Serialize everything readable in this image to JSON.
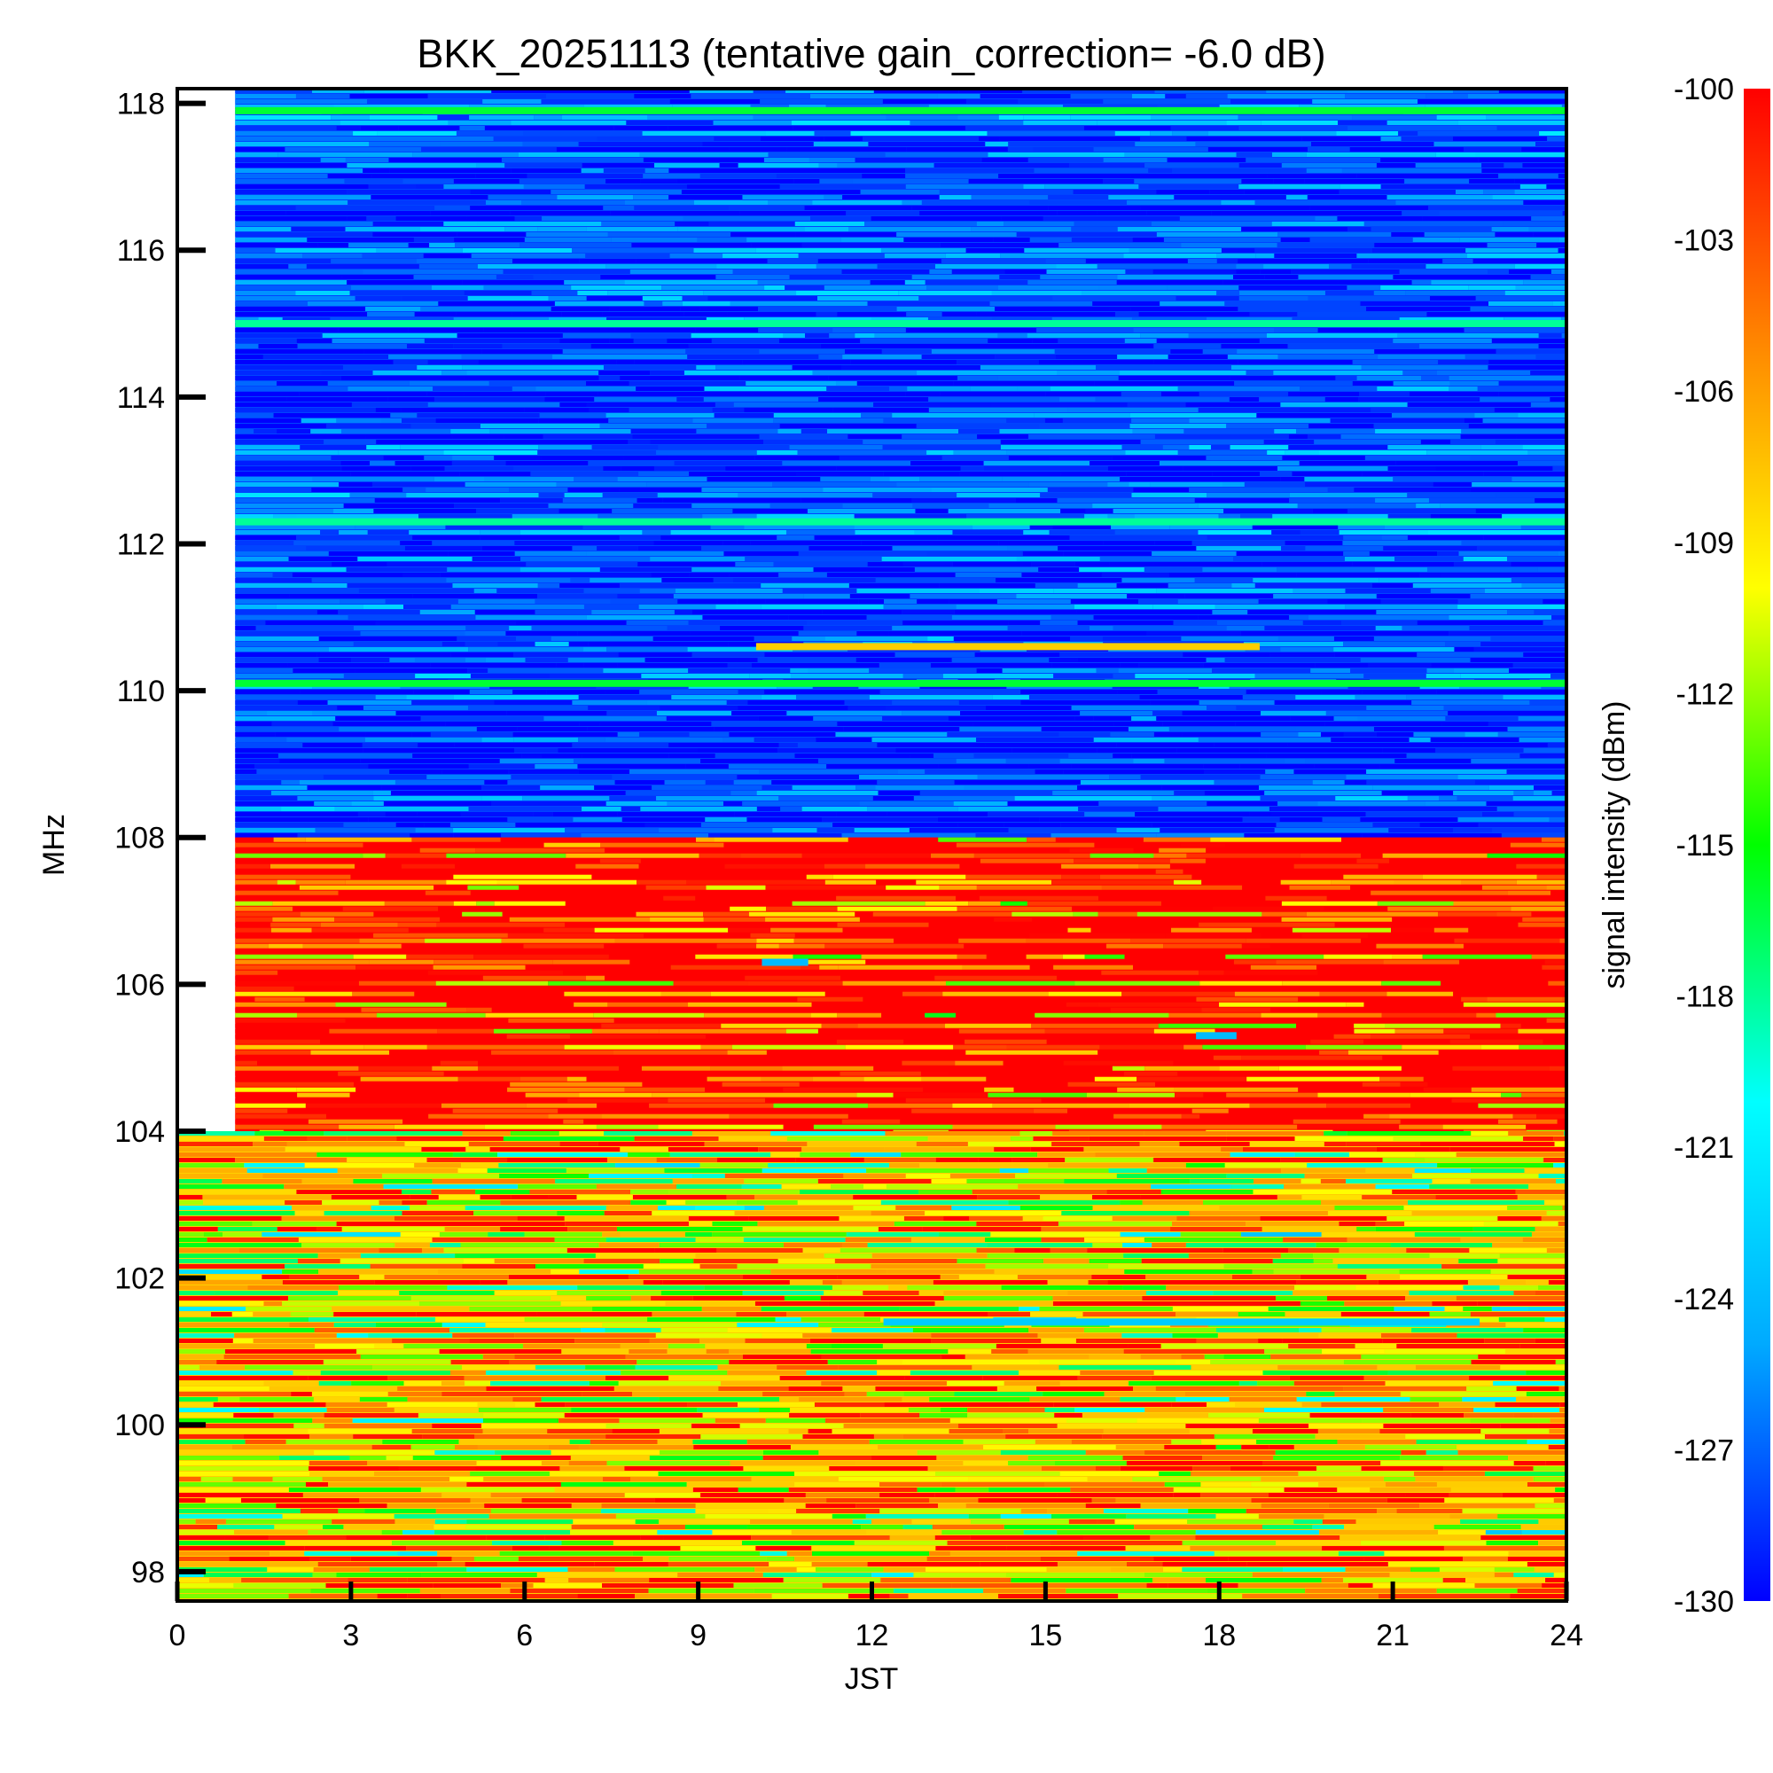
{
  "chart_data": {
    "type": "heatmap",
    "title": "BKK_20251113 (tentative gain_correction= -6.0 dB)",
    "xlabel": "JST",
    "ylabel": "MHz",
    "colorbar_label": "signal intensity (dBm)",
    "xlim": [
      0,
      24
    ],
    "ylim": [
      97.6,
      118.2
    ],
    "x_ticks": [
      0,
      3,
      6,
      9,
      12,
      15,
      18,
      21,
      24
    ],
    "x_tick_labels": [
      "0",
      "3",
      "6",
      "9",
      "12",
      "15",
      "18",
      "21",
      "24"
    ],
    "y_ticks": [
      98,
      100,
      102,
      104,
      106,
      108,
      110,
      112,
      114,
      116,
      118
    ],
    "y_tick_labels": [
      "98",
      "100",
      "102",
      "104",
      "106",
      "108",
      "110",
      "112",
      "114",
      "116",
      "118"
    ],
    "color_range": [
      -130,
      -100
    ],
    "colorbar_ticks": [
      -100,
      -103,
      -106,
      -109,
      -112,
      -115,
      -118,
      -121,
      -124,
      -127,
      -130
    ],
    "colorbar_tick_labels": [
      "-100",
      "-103",
      "-106",
      "-109",
      "-112",
      "-115",
      "-118",
      "-121",
      "-124",
      "-127",
      "-130"
    ],
    "colormap": [
      "#0000ff",
      "#00aaff",
      "#00ffff",
      "#00ff00",
      "#ffff00",
      "#ff8800",
      "#ff0000"
    ],
    "regions": [
      {
        "name": "no-data-upper",
        "x": [
          0,
          1
        ],
        "y": [
          104,
          118.2
        ],
        "value": null
      },
      {
        "name": "band-108-118",
        "x": [
          1,
          24
        ],
        "y": [
          108,
          118.2
        ],
        "typical_dBm": -128
      },
      {
        "name": "band-104-108",
        "x": [
          1,
          24
        ],
        "y": [
          104,
          108
        ],
        "typical_dBm": -100
      },
      {
        "name": "band-97.6-104",
        "x": [
          0,
          24
        ],
        "y": [
          97.6,
          104
        ],
        "typical_dBm": -108
      }
    ],
    "features": [
      {
        "name": "line-110.6",
        "freq": 110.6,
        "x": [
          10,
          18.7
        ],
        "dBm": -108
      },
      {
        "name": "line-110.1",
        "freq": 110.1,
        "x": [
          1,
          24
        ],
        "dBm": -116
      },
      {
        "name": "line-112.3",
        "freq": 112.3,
        "x": [
          1,
          24
        ],
        "dBm": -118
      },
      {
        "name": "line-115.0",
        "freq": 115.0,
        "x": [
          1,
          24
        ],
        "dBm": -118
      },
      {
        "name": "line-117.9",
        "freq": 117.9,
        "x": [
          1,
          24
        ],
        "dBm": -116
      },
      {
        "name": "cyan-patch-101.4",
        "freq": 101.4,
        "x": [
          12.2,
          22.5
        ],
        "dBm": -123
      },
      {
        "name": "cyan-patch-106.3",
        "freq": 106.3,
        "x": [
          10.1,
          10.9
        ],
        "dBm": -124
      },
      {
        "name": "cyan-patch-105.3",
        "freq": 105.3,
        "x": [
          17.6,
          18.3
        ],
        "dBm": -124
      }
    ]
  }
}
